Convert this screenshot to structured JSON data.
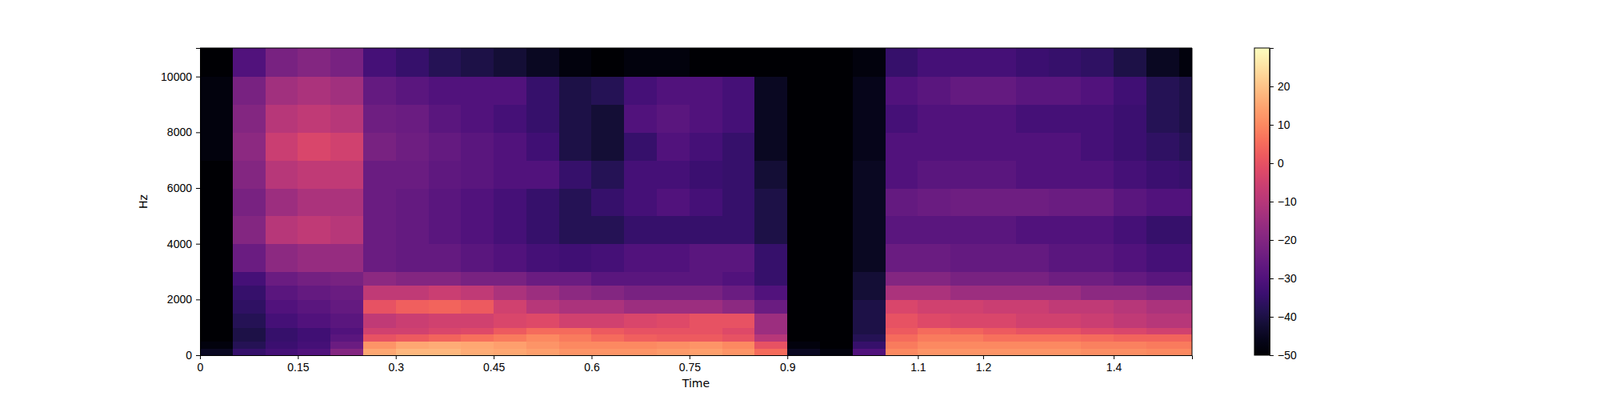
{
  "chart_data": {
    "type": "heatmap",
    "x_label": "Time",
    "y_label": "Hz",
    "color": "magma",
    "xlim": [
      0,
      1.52
    ],
    "ylim": [
      0,
      11025
    ],
    "xticks": [
      0,
      0.15,
      0.3,
      0.45,
      0.6,
      0.75,
      0.9,
      1.1,
      1.2,
      1.4
    ],
    "yticks": [
      0,
      2000,
      4000,
      6000,
      8000,
      10000
    ],
    "x_edges": [
      0,
      0.05,
      0.1,
      0.15,
      0.2,
      0.25,
      0.3,
      0.35,
      0.4,
      0.45,
      0.5,
      0.55,
      0.6,
      0.65,
      0.7,
      0.75,
      0.8,
      0.85,
      0.9,
      0.95,
      1.0,
      1.05,
      1.1,
      1.15,
      1.2,
      1.25,
      1.3,
      1.35,
      1.4,
      1.45,
      1.5,
      1.52
    ],
    "y_edges": [
      0,
      250,
      500,
      750,
      1000,
      1500,
      2000,
      2500,
      3000,
      4000,
      5000,
      6000,
      7000,
      8000,
      9000,
      10000,
      11025
    ],
    "z": [
      [
        -45,
        -35,
        -32,
        -30,
        -20,
        15,
        18,
        18,
        16,
        15,
        14,
        12,
        12,
        12,
        13,
        14,
        12,
        5,
        -45,
        -48,
        -30,
        10,
        12,
        12,
        12,
        12,
        12,
        11,
        11,
        10,
        10
      ],
      [
        -48,
        -38,
        -34,
        -32,
        -25,
        12,
        15,
        16,
        15,
        14,
        12,
        10,
        10,
        10,
        11,
        12,
        10,
        0,
        -48,
        -50,
        -35,
        8,
        10,
        10,
        10,
        10,
        10,
        9,
        9,
        8,
        8
      ],
      [
        -50,
        -40,
        -35,
        -33,
        -28,
        0,
        2,
        4,
        6,
        8,
        10,
        8,
        5,
        3,
        2,
        2,
        0,
        -10,
        -50,
        -50,
        -38,
        5,
        8,
        8,
        6,
        6,
        6,
        5,
        4,
        4,
        4
      ],
      [
        -50,
        -40,
        -35,
        -33,
        -30,
        -5,
        -5,
        -3,
        -2,
        2,
        5,
        5,
        2,
        0,
        0,
        0,
        -2,
        -15,
        -50,
        -50,
        -40,
        2,
        5,
        4,
        2,
        0,
        0,
        -2,
        -3,
        -5,
        -5
      ],
      [
        -50,
        -38,
        -32,
        -30,
        -28,
        -8,
        -6,
        -5,
        -5,
        -3,
        -2,
        -5,
        -5,
        -3,
        -2,
        0,
        0,
        -15,
        -50,
        -50,
        -40,
        0,
        -2,
        -3,
        -3,
        -5,
        -5,
        -6,
        -8,
        -10,
        -10
      ],
      [
        -50,
        -36,
        -30,
        -28,
        -26,
        0,
        3,
        4,
        2,
        -5,
        -10,
        -12,
        -12,
        -15,
        -15,
        -15,
        -18,
        -25,
        -50,
        -50,
        -40,
        -3,
        -5,
        -5,
        -6,
        -6,
        -8,
        -8,
        -10,
        -12,
        -12
      ],
      [
        -50,
        -35,
        -28,
        -26,
        -25,
        -8,
        -8,
        -6,
        -8,
        -12,
        -15,
        -18,
        -20,
        -22,
        -22,
        -22,
        -25,
        -30,
        -50,
        -50,
        -42,
        -12,
        -12,
        -15,
        -15,
        -15,
        -15,
        -18,
        -18,
        -20,
        -20
      ],
      [
        -50,
        -32,
        -25,
        -23,
        -22,
        -18,
        -20,
        -20,
        -22,
        -22,
        -25,
        -25,
        -28,
        -28,
        -28,
        -28,
        -30,
        -35,
        -50,
        -50,
        -42,
        -20,
        -20,
        -22,
        -22,
        -22,
        -24,
        -24,
        -26,
        -28,
        -28
      ],
      [
        -50,
        -25,
        -18,
        -16,
        -16,
        -25,
        -26,
        -26,
        -28,
        -30,
        -32,
        -33,
        -32,
        -30,
        -30,
        -28,
        -28,
        -35,
        -50,
        -50,
        -45,
        -25,
        -25,
        -26,
        -26,
        -26,
        -28,
        -28,
        -30,
        -32,
        -32
      ],
      [
        -50,
        -20,
        -10,
        -8,
        -10,
        -25,
        -26,
        -28,
        -30,
        -32,
        -35,
        -38,
        -38,
        -35,
        -35,
        -35,
        -35,
        -40,
        -50,
        -50,
        -45,
        -28,
        -28,
        -28,
        -28,
        -30,
        -30,
        -30,
        -32,
        -35,
        -35
      ],
      [
        -50,
        -22,
        -15,
        -12,
        -12,
        -25,
        -26,
        -28,
        -30,
        -32,
        -35,
        -38,
        -35,
        -32,
        -30,
        -32,
        -35,
        -40,
        -50,
        -50,
        -45,
        -26,
        -25,
        -24,
        -24,
        -24,
        -25,
        -25,
        -28,
        -30,
        -30
      ],
      [
        -50,
        -20,
        -10,
        -8,
        -8,
        -25,
        -25,
        -27,
        -28,
        -30,
        -30,
        -35,
        -38,
        -32,
        -32,
        -34,
        -35,
        -42,
        -50,
        -50,
        -45,
        -30,
        -28,
        -28,
        -28,
        -30,
        -30,
        -30,
        -32,
        -34,
        -35
      ],
      [
        -48,
        -18,
        -6,
        -3,
        -5,
        -22,
        -24,
        -26,
        -28,
        -30,
        -33,
        -40,
        -42,
        -35,
        -30,
        -32,
        -35,
        -45,
        -50,
        -50,
        -46,
        -30,
        -30,
        -30,
        -30,
        -30,
        -30,
        -32,
        -34,
        -36,
        -38
      ],
      [
        -48,
        -20,
        -10,
        -8,
        -10,
        -24,
        -25,
        -28,
        -30,
        -32,
        -35,
        -40,
        -42,
        -30,
        -28,
        -30,
        -32,
        -45,
        -50,
        -50,
        -46,
        -32,
        -30,
        -30,
        -30,
        -32,
        -32,
        -32,
        -34,
        -38,
        -40
      ],
      [
        -48,
        -22,
        -14,
        -12,
        -14,
        -26,
        -28,
        -30,
        -30,
        -30,
        -35,
        -40,
        -38,
        -32,
        -30,
        -30,
        -32,
        -45,
        -50,
        -50,
        -46,
        -30,
        -28,
        -26,
        -26,
        -28,
        -28,
        -30,
        -33,
        -38,
        -40
      ],
      [
        -50,
        -30,
        -22,
        -20,
        -22,
        -32,
        -35,
        -38,
        -40,
        -42,
        -45,
        -48,
        -50,
        -48,
        -48,
        -50,
        -50,
        -50,
        -50,
        -50,
        -48,
        -35,
        -32,
        -32,
        -32,
        -34,
        -35,
        -36,
        -40,
        -45,
        -48
      ]
    ],
    "zlim": [
      -50,
      30
    ],
    "zticks": [
      {
        "value": -50,
        "label": "−50"
      },
      {
        "value": -40,
        "label": "−40"
      },
      {
        "value": -30,
        "label": "−30"
      },
      {
        "value": -20,
        "label": "−20"
      },
      {
        "value": -10,
        "label": "−10"
      },
      0,
      10,
      20
    ]
  }
}
